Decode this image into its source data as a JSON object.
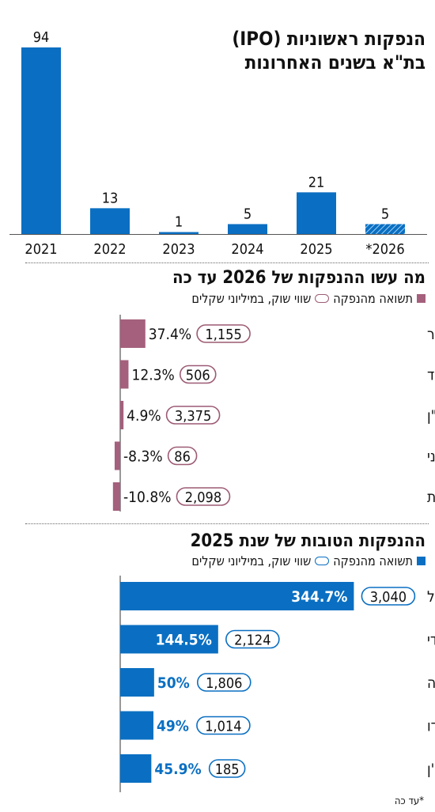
{
  "chart1": {
    "title_line1": "הנפקות ראשוניות (IPO)",
    "title_line2": "בת\"א בשנים האחרונות"
  },
  "section2": {
    "title": "מה עשו ההנפקות של 2026 עד כה",
    "legend_return": "תשואה מהנפקה",
    "legend_value": "שווי שוק, במיליוני שקלים"
  },
  "section3": {
    "title": "ההנפקות הטובות של שנת 2025",
    "legend_return": "תשואה מהנפקה",
    "legend_value": "שווי שוק, במיליוני שקלים"
  },
  "footnote": "*עד כה",
  "colors": {
    "blue": "#0a6fc2",
    "mauve": "#a4607c",
    "oval_mauve": "#9c5a74",
    "oval_blue": "#0a6fc2"
  },
  "chart_data": [
    {
      "type": "bar",
      "title": "הנפקות ראשוניות (IPO) בת\"א בשנים האחרונות",
      "categories": [
        "2021",
        "2022",
        "2023",
        "2024",
        "2025",
        "*2026"
      ],
      "values": [
        94,
        13,
        1,
        5,
        21,
        5
      ],
      "value_labels": [
        "94",
        "13",
        "1",
        "5",
        "21",
        "5"
      ],
      "ylim": [
        0,
        94
      ],
      "hatched_last": true
    },
    {
      "type": "bar",
      "orientation": "horizontal",
      "title": "מה עשו ההנפקות של 2026 עד כה",
      "categories": [
        "סמארט שוטר",
        "אולטרייד",
        "רמי לוי נדל\"ן",
        "מותג עירוני",
        "פרודלים השקעות"
      ],
      "series": [
        {
          "name": "תשואה מהנפקה",
          "values": [
            37.4,
            12.3,
            4.9,
            -8.3,
            -10.8
          ],
          "labels": [
            "37.4%",
            "12.3%",
            "4.9%",
            "-8.3%",
            "-10.8%"
          ]
        },
        {
          "name": "שווי שוק, במיליוני שקלים",
          "values": [
            1155,
            506,
            3375,
            86,
            2098
          ],
          "labels": [
            "1,155",
            "506",
            "3,375",
            "86",
            "2,098"
          ]
        }
      ]
    },
    {
      "type": "bar",
      "orientation": "horizontal",
      "title": "ההנפקות הטובות של שנת 2025",
      "categories": [
        "אר פי אופטיקל",
        "בלדי",
        "עומר הנדסה",
        "מגידו",
        "אקסון ויז'ן"
      ],
      "series": [
        {
          "name": "תשואה מהנפקה",
          "values": [
            344.7,
            144.5,
            50,
            49,
            45.9
          ],
          "labels": [
            "344.7%",
            "144.5%",
            "50%",
            "49%",
            "45.9%"
          ]
        },
        {
          "name": "שווי שוק, במיליוני שקלים",
          "values": [
            3040,
            2124,
            1806,
            1014,
            185
          ],
          "labels": [
            "3,040",
            "2,124",
            "1,806",
            "1,014",
            "185"
          ]
        }
      ]
    }
  ]
}
